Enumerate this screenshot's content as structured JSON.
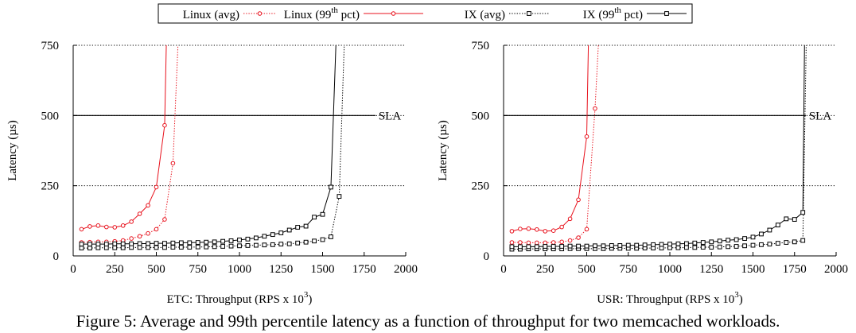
{
  "caption": "Figure 5: Average and 99th percentile latency as a function of throughput for two memcached workloads.",
  "legend": [
    {
      "label": "Linux (avg)",
      "sup": "",
      "suffix": "",
      "series": 0
    },
    {
      "label": "Linux (99",
      "sup": "th",
      "suffix": " pct)",
      "series": 1
    },
    {
      "label": "IX (avg)",
      "sup": "",
      "suffix": "",
      "series": 2
    },
    {
      "label": "IX (99",
      "sup": "th",
      "suffix": " pct)",
      "series": 3
    }
  ],
  "colors": {
    "linux": "#e8121d",
    "ix": "#000000",
    "grid": "#000000"
  },
  "chart_data": [
    {
      "type": "line",
      "xlabel": "ETC: Throughput (RPS x 10",
      "xlabel_sup": "3",
      "xlabel_suffix": ")",
      "ylabel": "Latency (µs)",
      "xlim": [
        0,
        2000
      ],
      "ylim": [
        0,
        750
      ],
      "xticks": [
        0,
        250,
        500,
        750,
        1000,
        1250,
        1500,
        1750,
        2000
      ],
      "yticks": [
        0,
        250,
        500,
        750
      ],
      "gridlines_y": [
        250,
        500,
        750
      ],
      "sla": {
        "value": 500,
        "label": "SLA"
      },
      "series": [
        {
          "name": "Linux (avg)",
          "color": "red",
          "style": "dotted",
          "marker": "circle",
          "x": [
            50,
            100,
            150,
            200,
            250,
            300,
            350,
            400,
            450,
            500,
            550,
            600,
            630
          ],
          "y": [
            48,
            49,
            50,
            50,
            52,
            55,
            62,
            70,
            80,
            95,
            130,
            330,
            750
          ]
        },
        {
          "name": "Linux (99th pct)",
          "color": "red",
          "style": "solid",
          "marker": "circle",
          "x": [
            50,
            100,
            150,
            200,
            250,
            300,
            350,
            400,
            450,
            500,
            550,
            560
          ],
          "y": [
            95,
            105,
            108,
            103,
            102,
            108,
            122,
            150,
            180,
            245,
            465,
            750
          ]
        },
        {
          "name": "IX (avg)",
          "color": "black",
          "style": "dotted",
          "marker": "square",
          "x": [
            50,
            100,
            150,
            200,
            250,
            300,
            350,
            400,
            450,
            500,
            550,
            600,
            650,
            700,
            750,
            800,
            850,
            900,
            950,
            1000,
            1050,
            1100,
            1150,
            1200,
            1250,
            1300,
            1350,
            1400,
            1450,
            1500,
            1550,
            1600,
            1630
          ],
          "y": [
            28,
            28,
            29,
            29,
            29,
            29,
            30,
            30,
            30,
            30,
            30,
            31,
            31,
            31,
            32,
            32,
            33,
            34,
            35,
            36,
            37,
            38,
            39,
            40,
            42,
            43,
            46,
            49,
            53,
            58,
            68,
            212,
            750
          ]
        },
        {
          "name": "IX (99th pct)",
          "color": "black",
          "style": "solid",
          "marker": "square",
          "x": [
            50,
            100,
            150,
            200,
            250,
            300,
            350,
            400,
            450,
            500,
            550,
            600,
            650,
            700,
            750,
            800,
            850,
            900,
            950,
            1000,
            1050,
            1100,
            1150,
            1200,
            1250,
            1300,
            1350,
            1400,
            1450,
            1500,
            1550,
            1580
          ],
          "y": [
            42,
            42,
            42,
            42,
            43,
            43,
            43,
            44,
            44,
            45,
            45,
            46,
            47,
            47,
            48,
            49,
            50,
            52,
            54,
            57,
            60,
            64,
            70,
            76,
            82,
            92,
            102,
            106,
            138,
            148,
            245,
            750
          ]
        }
      ]
    },
    {
      "type": "line",
      "xlabel": "USR: Throughput (RPS x 10",
      "xlabel_sup": "3",
      "xlabel_suffix": ")",
      "ylabel": "Latency (µs)",
      "xlim": [
        0,
        2000
      ],
      "ylim": [
        0,
        750
      ],
      "xticks": [
        0,
        250,
        500,
        750,
        1000,
        1250,
        1500,
        1750,
        2000
      ],
      "yticks": [
        0,
        250,
        500,
        750
      ],
      "gridlines_y": [
        250,
        500,
        750
      ],
      "sla": {
        "value": 500,
        "label": "SLA"
      },
      "series": [
        {
          "name": "Linux (avg)",
          "color": "red",
          "style": "dotted",
          "marker": "circle",
          "x": [
            50,
            100,
            150,
            200,
            250,
            300,
            350,
            400,
            450,
            500,
            550,
            570
          ],
          "y": [
            48,
            48,
            47,
            47,
            47,
            48,
            50,
            55,
            65,
            95,
            525,
            750
          ]
        },
        {
          "name": "Linux (99th pct)",
          "color": "red",
          "style": "solid",
          "marker": "circle",
          "x": [
            50,
            100,
            150,
            200,
            250,
            300,
            350,
            400,
            450,
            500,
            510
          ],
          "y": [
            88,
            96,
            97,
            94,
            88,
            90,
            103,
            132,
            200,
            425,
            750
          ]
        },
        {
          "name": "IX (avg)",
          "color": "black",
          "style": "dotted",
          "marker": "square",
          "x": [
            50,
            100,
            150,
            200,
            250,
            300,
            350,
            400,
            450,
            500,
            550,
            600,
            650,
            700,
            750,
            800,
            850,
            900,
            950,
            1000,
            1050,
            1100,
            1150,
            1200,
            1250,
            1300,
            1350,
            1400,
            1450,
            1500,
            1550,
            1600,
            1650,
            1700,
            1750,
            1800,
            1820
          ],
          "y": [
            24,
            24,
            25,
            25,
            25,
            25,
            25,
            26,
            26,
            26,
            26,
            26,
            27,
            27,
            27,
            27,
            28,
            28,
            28,
            29,
            29,
            30,
            30,
            31,
            31,
            32,
            33,
            34,
            36,
            38,
            40,
            42,
            45,
            48,
            50,
            55,
            750
          ]
        },
        {
          "name": "IX (99th pct)",
          "color": "black",
          "style": "solid",
          "marker": "square",
          "x": [
            50,
            100,
            150,
            200,
            250,
            300,
            350,
            400,
            450,
            500,
            550,
            600,
            650,
            700,
            750,
            800,
            850,
            900,
            950,
            1000,
            1050,
            1100,
            1150,
            1200,
            1250,
            1300,
            1350,
            1400,
            1450,
            1500,
            1550,
            1600,
            1650,
            1700,
            1750,
            1800,
            1810
          ],
          "y": [
            33,
            33,
            33,
            33,
            34,
            34,
            34,
            35,
            35,
            35,
            36,
            36,
            37,
            37,
            38,
            38,
            39,
            40,
            41,
            42,
            43,
            44,
            46,
            48,
            50,
            53,
            56,
            58,
            62,
            67,
            78,
            92,
            110,
            132,
            130,
            155,
            750
          ]
        }
      ]
    }
  ]
}
